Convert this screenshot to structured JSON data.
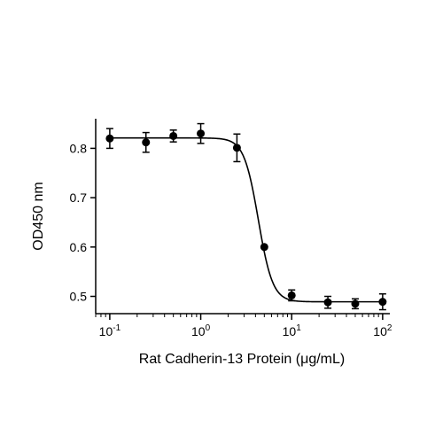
{
  "chart_data": {
    "type": "scatter",
    "title": "",
    "xlabel": "Rat Cadherin-13 Protein (μg/mL)",
    "ylabel": "OD450 nm",
    "x_scale": "log",
    "xlim": [
      0.07,
      120
    ],
    "ylim": [
      0.465,
      0.86
    ],
    "x_ticks": [
      {
        "value": 0.1,
        "base": "10",
        "exp": "-1"
      },
      {
        "value": 1,
        "base": "10",
        "exp": "0"
      },
      {
        "value": 10,
        "base": "10",
        "exp": "1"
      },
      {
        "value": 100,
        "base": "10",
        "exp": "2"
      }
    ],
    "y_ticks": [
      {
        "value": 0.5,
        "label": "0.5"
      },
      {
        "value": 0.6,
        "label": "0.6"
      },
      {
        "value": 0.7,
        "label": "0.7"
      },
      {
        "value": 0.8,
        "label": "0.8"
      }
    ],
    "grid": false,
    "series": [
      {
        "points": [
          {
            "x": 0.1,
            "y": 0.82,
            "err": 0.02
          },
          {
            "x": 0.25,
            "y": 0.812,
            "err": 0.02
          },
          {
            "x": 0.5,
            "y": 0.825,
            "err": 0.012
          },
          {
            "x": 1,
            "y": 0.83,
            "err": 0.02
          },
          {
            "x": 2.5,
            "y": 0.801,
            "err": 0.028
          },
          {
            "x": 5,
            "y": 0.6,
            "err": 0.0
          },
          {
            "x": 10,
            "y": 0.502,
            "err": 0.011
          },
          {
            "x": 25,
            "y": 0.488,
            "err": 0.012
          },
          {
            "x": 50,
            "y": 0.485,
            "err": 0.01
          },
          {
            "x": 100,
            "y": 0.489,
            "err": 0.016
          }
        ],
        "fit": {
          "model": "4PL",
          "top": 0.821,
          "bottom": 0.489,
          "ec50": 4.3,
          "hill": 5.5
        }
      }
    ]
  }
}
